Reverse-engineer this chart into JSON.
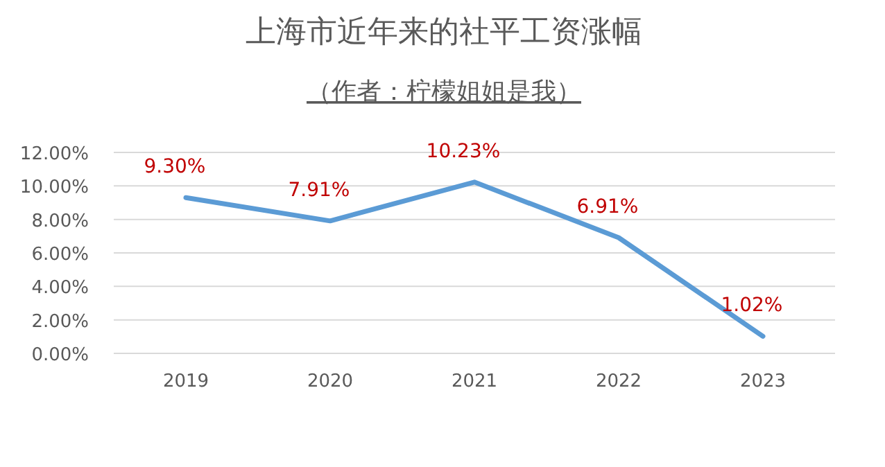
{
  "chart_data": {
    "type": "line",
    "title": "上海市近年来的社平工资涨幅",
    "subtitle": "（作者：柠檬姐姐是我）",
    "categories": [
      "2019",
      "2020",
      "2021",
      "2022",
      "2023"
    ],
    "series": [
      {
        "color": "#5b9bd5",
        "values": [
          9.3,
          7.91,
          10.23,
          6.91,
          1.02
        ],
        "value_labels": [
          "9.30%",
          "7.91%",
          "10.23%",
          "6.91%",
          "1.02%"
        ]
      }
    ],
    "ylim": [
      0,
      12
    ],
    "yticks": [
      {
        "value": 0,
        "label": "0.00%"
      },
      {
        "value": 2,
        "label": "2.00%"
      },
      {
        "value": 4,
        "label": "4.00%"
      },
      {
        "value": 6,
        "label": "6.00%"
      },
      {
        "value": 8,
        "label": "8.00%"
      },
      {
        "value": 10,
        "label": "10.00%"
      },
      {
        "value": 12,
        "label": "12.00%"
      }
    ],
    "grid": "y",
    "marker": "none",
    "line_style": "solid"
  }
}
